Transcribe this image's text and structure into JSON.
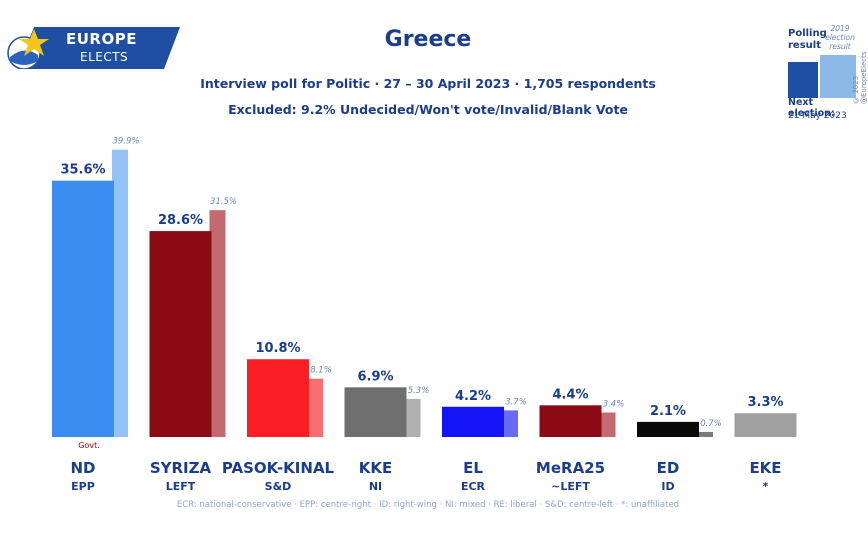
{
  "header": {
    "logo_line1": "EUROPE",
    "logo_line2": "ELECTS",
    "title": "Greece",
    "subtitle1": "Interview poll for Politic · 27 – 30 April 2023 · 1,705 respondents",
    "subtitle2": "Excluded: 9.2% Undecided/Won't vote/Invalid/Blank Vote"
  },
  "legend": {
    "polling_label": "Polling result",
    "election_label": "2019 election result",
    "next_election_label": "Next election:",
    "next_election_date": "21 May 2023",
    "copyright": "© 2023 @EuropeElects"
  },
  "footnote": "ECR: national-conservative · EPP: centre-right · ID: right-wing · NI: mixed · RE: liberal · S&D: centre-left · *: unaffiliated",
  "chart_data": {
    "type": "bar",
    "title": "Greece",
    "categories": [
      "ND",
      "SYRIZA",
      "PASOK-KINAL",
      "KKE",
      "EL",
      "MeRA25",
      "ED",
      "EKE"
    ],
    "groups": [
      "EPP",
      "LEFT",
      "S&D",
      "NI",
      "ECR",
      "~LEFT",
      "ID",
      "*"
    ],
    "series": [
      {
        "name": "Polling result",
        "values": [
          35.6,
          28.6,
          10.8,
          6.9,
          4.2,
          4.4,
          2.1,
          3.3
        ],
        "labels": [
          "35.6%",
          "28.6%",
          "10.8%",
          "6.9%",
          "4.2%",
          "4.4%",
          "2.1%",
          "3.3%"
        ]
      },
      {
        "name": "2019 election result",
        "values": [
          39.9,
          31.5,
          8.1,
          5.3,
          3.7,
          3.4,
          0.7,
          null
        ],
        "labels": [
          "39.9%",
          "31.5%",
          "8.1%",
          "5.3%",
          "3.7%",
          "3.4%",
          "0.7%",
          ""
        ]
      }
    ],
    "colors": [
      "#3b8ef0",
      "#8b0a14",
      "#fb1e24",
      "#6f6f6f",
      "#1414f5",
      "#8b0a14",
      "#0a0a0a",
      "#a0a0a0"
    ],
    "election_colors": [
      "#93c3f7",
      "#c26a6f",
      "#fb6e72",
      "#b0b0b0",
      "#6a6af5",
      "#c26a6f",
      "#7a7a7a",
      "#d0d0d0"
    ],
    "annotations": [
      {
        "category": "ND",
        "text": "Govt."
      }
    ],
    "ylim": [
      0,
      40
    ],
    "xlabel": "",
    "ylabel": ""
  }
}
